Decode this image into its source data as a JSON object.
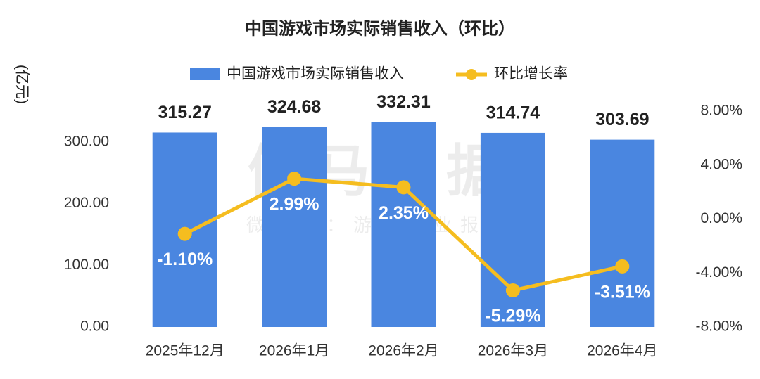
{
  "chart_data": {
    "type": "bar_line",
    "title": "中国游戏市场实际销售收入（环比）",
    "y_label": "(亿元)",
    "watermark": "伽马数据",
    "watermark_sub": "微信号：游戏产业报告",
    "categories": [
      "2025年12月",
      "2026年1月",
      "2026年2月",
      "2026年3月",
      "2026年4月"
    ],
    "series": [
      {
        "name": "中国游戏市场实际销售收入",
        "color": "#4a86e0",
        "type": "bar",
        "values": [
          315.27,
          324.68,
          332.31,
          314.74,
          303.69
        ]
      },
      {
        "name": "环比增长率",
        "color": "#f5bd1f",
        "type": "line",
        "axis": "y2",
        "values": [
          -1.1,
          2.99,
          2.35,
          -5.29,
          -3.51
        ],
        "value_labels": [
          "-1.10%",
          "2.99%",
          "2.35%",
          "-5.29%",
          "-3.51%"
        ]
      }
    ],
    "ylim": [
      0,
      350
    ],
    "yticks": [
      {
        "value": 0,
        "label": "0.00"
      },
      {
        "value": 100,
        "label": "100.00"
      },
      {
        "value": 200,
        "label": "200.00"
      },
      {
        "value": 300,
        "label": "300.00"
      }
    ],
    "y2lim": [
      -8,
      8
    ],
    "y2ticks": [
      {
        "value": -8,
        "label": "-8.00%"
      },
      {
        "value": -4,
        "label": "-4.00%"
      },
      {
        "value": 0,
        "label": "0.00%"
      },
      {
        "value": 4,
        "label": "4.00%"
      },
      {
        "value": 8,
        "label": "8.00%"
      }
    ],
    "legend": "top"
  }
}
